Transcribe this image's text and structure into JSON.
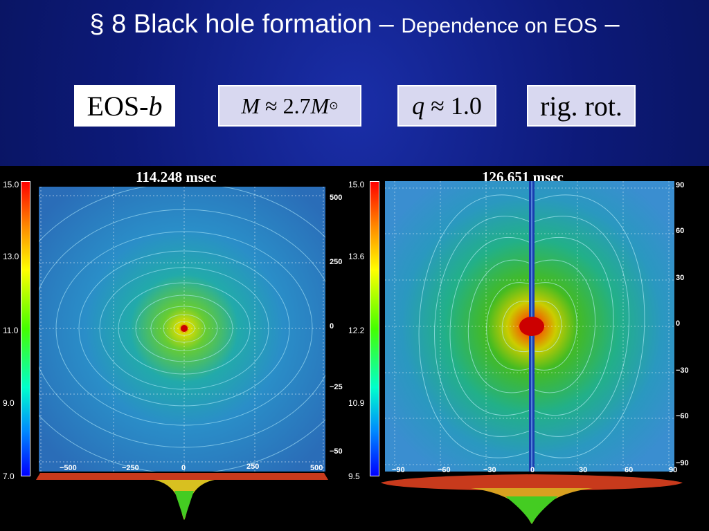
{
  "slide": {
    "title_main": "§ 8  Black hole formation –",
    "title_sub": "Dependence on EOS",
    "title_end": "–"
  },
  "params": {
    "eos_prefix": "EOS-",
    "eos_italic": "b",
    "mass_var": "M",
    "mass_rest": "≈ 2.7",
    "mass_unit": "M",
    "mass_sun": "⊙",
    "q_var": "q",
    "q_rest": "≈ 1.0",
    "rotation": "rig. rot."
  },
  "left_panel": {
    "time": "114.248 msec",
    "colorbar_ticks": [
      "15.0",
      "13.0",
      "11.0",
      "9.0",
      "7.0"
    ],
    "y_ticks": [
      "500",
      "250",
      "0",
      "−25",
      "−50"
    ],
    "x_ticks": [
      "−500",
      "−250",
      "0",
      "250",
      "500"
    ]
  },
  "right_panel": {
    "time": "126.651 msec",
    "colorbar_ticks": [
      "15.0",
      "13.6",
      "12.2",
      "10.9",
      "9.5"
    ],
    "y_ticks": [
      "90",
      "60",
      "30",
      "0",
      "−30",
      "−60",
      "−90"
    ],
    "x_ticks": [
      "−90",
      "−60",
      "−30",
      "0",
      "30",
      "60",
      "90"
    ]
  },
  "colors": {
    "background": "#0d1a7a",
    "param_box": "#d8d8f0",
    "plot_field": "#2a7fc0"
  }
}
